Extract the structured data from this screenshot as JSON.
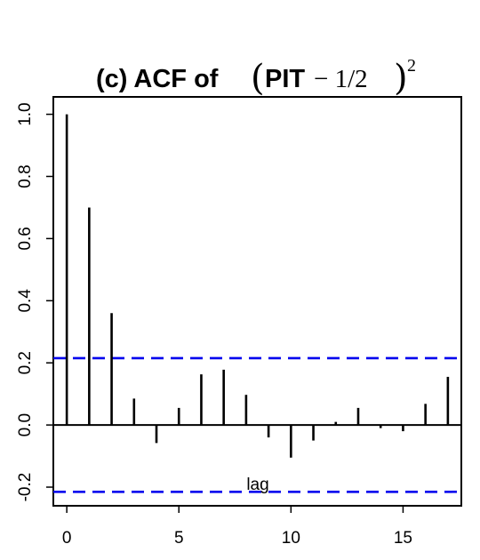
{
  "chart_data": {
    "type": "bar",
    "title": {
      "prefix": "(c) ACF of",
      "math_bold": "PIT",
      "math_rest": "− 1/2",
      "exponent": "2"
    },
    "xlabel": "lag",
    "ylabel": "",
    "x": [
      0,
      1,
      2,
      3,
      4,
      5,
      6,
      7,
      8,
      9,
      10,
      11,
      12,
      13,
      14,
      15,
      16,
      17
    ],
    "values": [
      1.0,
      0.7,
      0.36,
      0.085,
      -0.058,
      0.055,
      0.163,
      0.178,
      0.097,
      -0.04,
      -0.105,
      -0.05,
      0.01,
      0.055,
      -0.01,
      -0.02,
      0.068,
      0.155
    ],
    "confidence_band": [
      0.215,
      -0.215
    ],
    "xlim": [
      -0.6,
      17.6
    ],
    "ylim": [
      -0.26,
      1.056
    ],
    "xticks": [
      0,
      5,
      10,
      15
    ],
    "xtick_labels": [
      "0",
      "5",
      "10",
      "15"
    ],
    "yticks": [
      -0.2,
      0.0,
      0.2,
      0.4,
      0.6,
      0.8,
      1.0
    ],
    "ytick_labels": [
      "-0.2",
      "0.0",
      "0.2",
      "0.4",
      "0.6",
      "0.8",
      "1.0"
    ],
    "grid": false,
    "colors": {
      "bars": "#000000",
      "confidence_band": "#0000ee",
      "zero_line": "#000000"
    }
  }
}
